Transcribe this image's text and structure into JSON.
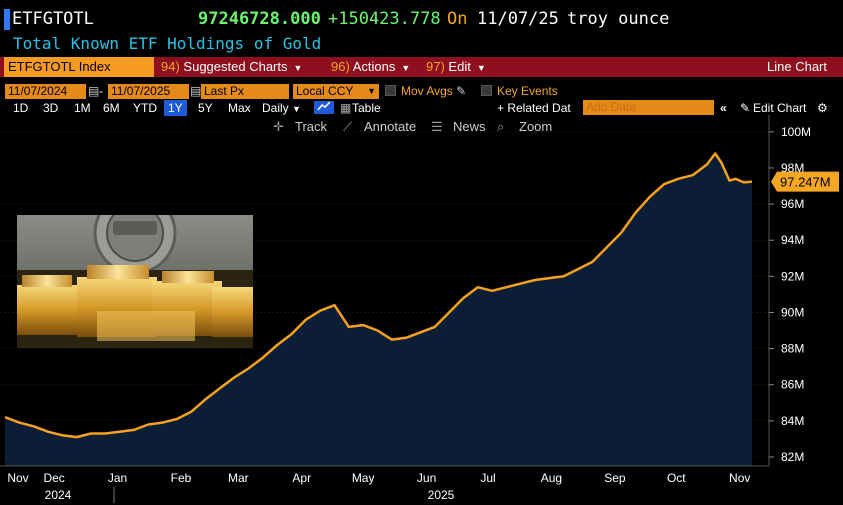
{
  "header": {
    "ticker": "ETFGTOTL",
    "price": "97246728.000",
    "change": "+150423.778",
    "on_label": "On",
    "date": "11/07/25",
    "unit": "troy ounce",
    "subtitle": "Total Known ETF Holdings of Gold"
  },
  "toolbar": {
    "index_label": "ETFGTOTL Index",
    "suggested_num": "94)",
    "suggested_label": "Suggested Charts",
    "actions_num": "96)",
    "actions_label": "Actions",
    "edit_num": "97)",
    "edit_label": "Edit",
    "chart_type": "Line Chart"
  },
  "range_row": {
    "start_date": "11/07/2024",
    "dash": "-",
    "end_date": "11/07/2025",
    "field": "Last Px",
    "currency": "Local CCY",
    "mov_avgs": "Mov Avgs",
    "key_events": "Key Events"
  },
  "period_row": {
    "periods": [
      "1D",
      "3D",
      "1M",
      "6M",
      "YTD",
      "1Y",
      "5Y",
      "Max"
    ],
    "selected": "1Y",
    "frequency": "Daily",
    "table_label": "Table",
    "related_data": "+ Related Dat",
    "add_data_placeholder": "Add Data",
    "edit_chart": "Edit Chart"
  },
  "chart_tools": {
    "track": "Track",
    "annotate": "Annotate",
    "news": "News",
    "zoom": "Zoom"
  },
  "colors": {
    "line": "#f5a11e",
    "fill": "#0c1e35",
    "price_green": "#6cf56c",
    "accent_orange": "#f5a623",
    "toolbar_red": "#8e0f1d",
    "subtitle_cyan": "#27c2e6"
  },
  "chart_data": {
    "type": "area",
    "title": "",
    "ylabel": "",
    "ylim": [
      81.5,
      100.6
    ],
    "ytick_labels": [
      "82M",
      "84M",
      "86M",
      "88M",
      "90M",
      "92M",
      "94M",
      "96M",
      "98M",
      "100M"
    ],
    "ytick_values": [
      82,
      84,
      86,
      88,
      90,
      92,
      94,
      96,
      98,
      100
    ],
    "last_value_label": "97.247M",
    "last_value": 97.247,
    "x_month_labels": [
      "Nov",
      "Dec",
      "Jan",
      "Feb",
      "Mar",
      "Apr",
      "May",
      "Jun",
      "Jul",
      "Aug",
      "Sep",
      "Oct",
      "Nov"
    ],
    "x_month_dates": [
      "2024-11-07",
      "2024-12-01",
      "2025-01-01",
      "2025-02-01",
      "2025-03-01",
      "2025-04-01",
      "2025-05-01",
      "2025-06-01",
      "2025-07-01",
      "2025-08-01",
      "2025-09-01",
      "2025-10-01",
      "2025-11-01"
    ],
    "x_year_labels": [
      "2024",
      "2025"
    ],
    "x_range": [
      "2024-11-07",
      "2025-11-07"
    ],
    "series": [
      {
        "x": [
          "2024-11-07",
          "2024-11-14",
          "2024-11-21",
          "2024-11-28",
          "2024-12-05",
          "2024-12-12",
          "2024-12-19",
          "2024-12-26",
          "2025-01-02",
          "2025-01-09",
          "2025-01-16",
          "2025-01-23",
          "2025-01-30",
          "2025-02-06",
          "2025-02-13",
          "2025-02-20",
          "2025-02-27",
          "2025-03-06",
          "2025-03-13",
          "2025-03-20",
          "2025-03-27",
          "2025-04-03",
          "2025-04-10",
          "2025-04-17",
          "2025-04-24",
          "2025-05-01",
          "2025-05-08",
          "2025-05-15",
          "2025-05-22",
          "2025-05-29",
          "2025-06-05",
          "2025-06-12",
          "2025-06-19",
          "2025-06-26",
          "2025-07-03",
          "2025-07-10",
          "2025-07-17",
          "2025-07-24",
          "2025-07-31",
          "2025-08-07",
          "2025-08-14",
          "2025-08-21",
          "2025-08-28",
          "2025-09-04",
          "2025-09-11",
          "2025-09-18",
          "2025-09-25",
          "2025-10-02",
          "2025-10-09",
          "2025-10-16",
          "2025-10-20",
          "2025-10-23",
          "2025-10-27",
          "2025-10-30",
          "2025-11-03",
          "2025-11-07"
        ],
        "values": [
          84.2,
          83.9,
          83.7,
          83.4,
          83.2,
          83.1,
          83.3,
          83.3,
          83.4,
          83.5,
          83.8,
          83.9,
          84.1,
          84.5,
          85.2,
          85.8,
          86.4,
          86.9,
          87.5,
          88.2,
          88.8,
          89.6,
          90.1,
          90.4,
          89.2,
          89.3,
          89.0,
          88.5,
          88.6,
          88.9,
          89.2,
          90.0,
          90.8,
          91.4,
          91.2,
          91.4,
          91.6,
          91.8,
          91.9,
          92.0,
          92.4,
          92.8,
          93.6,
          94.4,
          95.5,
          96.4,
          97.1,
          97.4,
          97.6,
          98.2,
          98.8,
          98.3,
          97.3,
          97.4,
          97.2,
          97.247
        ]
      }
    ]
  }
}
